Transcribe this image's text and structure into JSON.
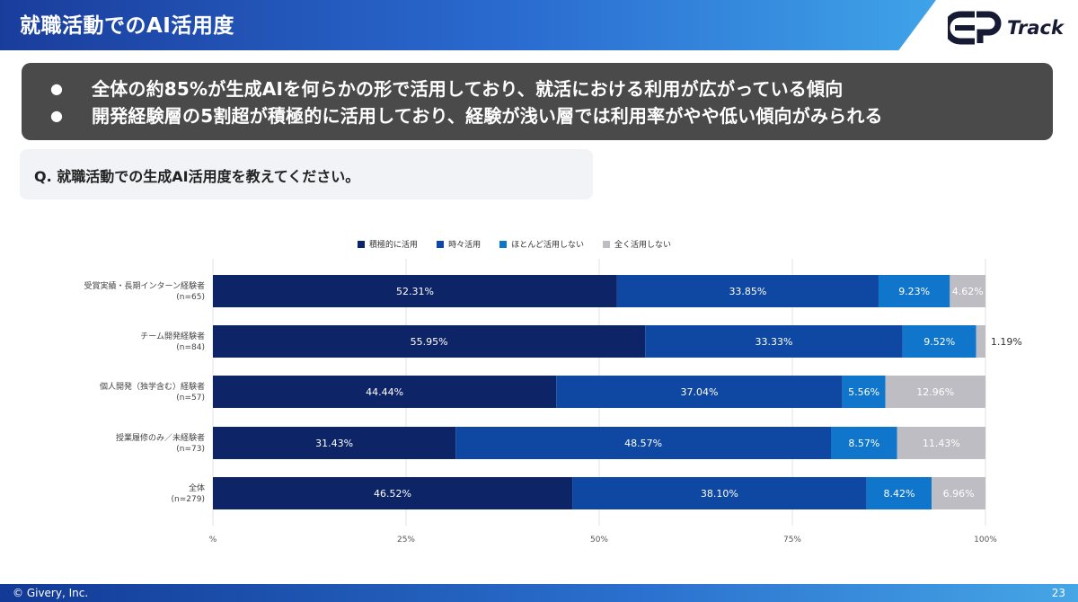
{
  "header": {
    "title": "就職活動でのAI活用度",
    "logo_text": "Track"
  },
  "summary": {
    "bullets": [
      "全体の約85%が生成AIを何らかの形で活用しており、就活における利用が広がっている傾向",
      "開発経験層の5割超が積極的に活用しており、経験が浅い層では利用率がやや低い傾向がみられる"
    ]
  },
  "question": {
    "text": "Q. 就職活動での生成AI活用度を教えてください。"
  },
  "chart_data": {
    "type": "bar",
    "orientation": "horizontal",
    "stacked": true,
    "categories": [
      "受賞実績・長期インターン経験者\n(n=65)",
      "チーム開発経験者\n(n=84)",
      "個人開発（独学含む）経験者\n(n=57)",
      "授業履修のみ／未経験者\n(n=73)",
      "全体\n(n=279)"
    ],
    "series": [
      {
        "name": "積極的に活用",
        "color": "#0d2466",
        "values": [
          52.31,
          55.95,
          44.44,
          31.43,
          46.52
        ]
      },
      {
        "name": "時々活用",
        "color": "#0f48a2",
        "values": [
          33.85,
          33.33,
          37.04,
          48.57,
          38.1
        ]
      },
      {
        "name": "ほとんど活用しない",
        "color": "#0f76cc",
        "values": [
          9.23,
          9.52,
          5.56,
          8.57,
          8.42
        ]
      },
      {
        "name": "全く活用しない",
        "color": "#bdbdc3",
        "values": [
          4.62,
          1.19,
          12.96,
          11.43,
          6.96
        ]
      }
    ],
    "xlim": [
      0,
      100
    ],
    "xticks": [
      "%",
      "25%",
      "50%",
      "75%",
      "100%"
    ],
    "grid": true,
    "legend": "top"
  },
  "footer": {
    "copyright": "© Givery, Inc.",
    "page": "23"
  }
}
